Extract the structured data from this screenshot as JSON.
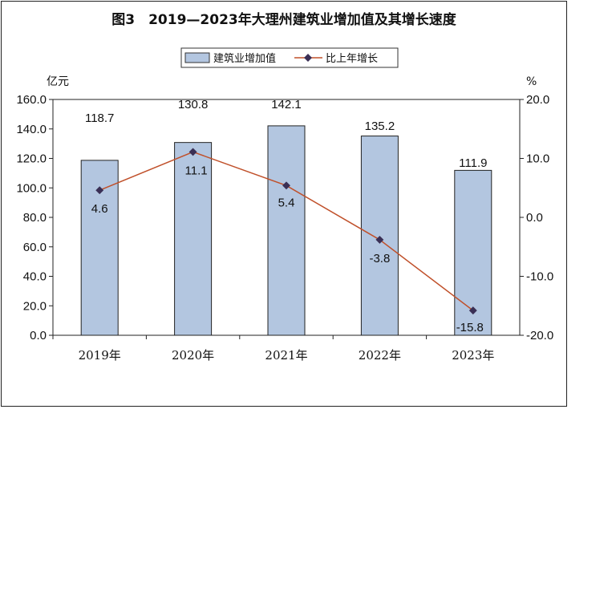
{
  "chart_data": {
    "type": "bar",
    "title": "图3　2019—2023年大理州建筑业增加值及其增长速度",
    "categories": [
      "2019年",
      "2020年",
      "2021年",
      "2022年",
      "2023年"
    ],
    "series": [
      {
        "name": "建筑业增加值",
        "type": "bar",
        "axis": "left",
        "values": [
          118.7,
          130.8,
          142.1,
          135.2,
          111.9
        ],
        "color": "#b3c6e0"
      },
      {
        "name": "比上年增长",
        "type": "line",
        "axis": "right",
        "values": [
          4.6,
          11.1,
          5.4,
          -3.8,
          -15.8
        ],
        "color": "#c0502a",
        "marker_color": "#3a2f55"
      }
    ],
    "ylabel": "亿元",
    "ylabel_right": "%",
    "ylim": [
      0,
      160
    ],
    "ylim_right": [
      -20,
      20
    ],
    "yticks": [
      "0.0",
      "20.0",
      "40.0",
      "60.0",
      "80.0",
      "100.0",
      "120.0",
      "140.0",
      "160.0"
    ],
    "yticks_right": [
      "-20.0",
      "-10.0",
      "0.0",
      "10.0",
      "20.0"
    ],
    "bar_labels": [
      "118.7",
      "130.8",
      "142.1",
      "135.2",
      "111.9"
    ],
    "line_labels": [
      "4.6",
      "11.1",
      "5.4",
      "-3.8",
      "-15.8"
    ],
    "legend_position": "top",
    "grid": false
  }
}
